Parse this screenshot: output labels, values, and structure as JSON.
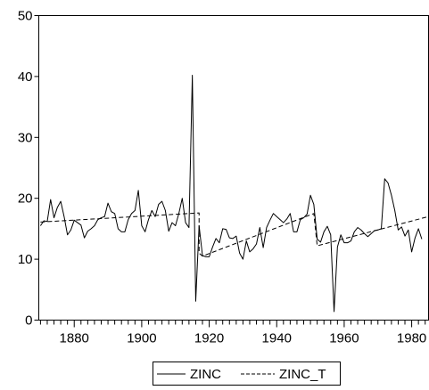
{
  "chart_data": {
    "type": "line",
    "title": "",
    "xlabel": "",
    "ylabel": "",
    "xlim": [
      1869.5,
      1985
    ],
    "ylim": [
      0,
      50
    ],
    "y_ticks": [
      0,
      10,
      20,
      30,
      40,
      50
    ],
    "x_ticks": [
      1880,
      1900,
      1920,
      1940,
      1960,
      1980
    ],
    "grid": false,
    "legend_position": "bottom-center",
    "series": [
      {
        "name": "ZINC",
        "style": "solid",
        "color": "#000000",
        "points": [
          [
            1870,
            15.5
          ],
          [
            1871,
            16.3
          ],
          [
            1872,
            16.2
          ],
          [
            1873,
            19.8
          ],
          [
            1874,
            16.8
          ],
          [
            1875,
            18.5
          ],
          [
            1876,
            19.5
          ],
          [
            1877,
            17.0
          ],
          [
            1878,
            14.0
          ],
          [
            1879,
            14.8
          ],
          [
            1880,
            16.4
          ],
          [
            1881,
            16.0
          ],
          [
            1882,
            15.6
          ],
          [
            1883,
            13.5
          ],
          [
            1884,
            14.6
          ],
          [
            1885,
            15.0
          ],
          [
            1886,
            15.5
          ],
          [
            1887,
            16.5
          ],
          [
            1888,
            16.8
          ],
          [
            1889,
            17.0
          ],
          [
            1890,
            19.2
          ],
          [
            1891,
            17.8
          ],
          [
            1892,
            17.5
          ],
          [
            1893,
            15.0
          ],
          [
            1894,
            14.5
          ],
          [
            1895,
            14.5
          ],
          [
            1896,
            16.5
          ],
          [
            1897,
            17.5
          ],
          [
            1898,
            18.0
          ],
          [
            1899,
            21.3
          ],
          [
            1900,
            15.5
          ],
          [
            1901,
            14.5
          ],
          [
            1902,
            16.5
          ],
          [
            1903,
            18.0
          ],
          [
            1904,
            17.0
          ],
          [
            1905,
            19.0
          ],
          [
            1906,
            19.5
          ],
          [
            1907,
            18.0
          ],
          [
            1908,
            14.6
          ],
          [
            1909,
            16.0
          ],
          [
            1910,
            15.5
          ],
          [
            1911,
            17.5
          ],
          [
            1912,
            20.0
          ],
          [
            1913,
            16.0
          ],
          [
            1914,
            15.2
          ],
          [
            1915,
            40.2
          ],
          [
            1916,
            3.1
          ],
          [
            1917,
            15.5
          ],
          [
            1918,
            10.6
          ],
          [
            1919,
            10.4
          ],
          [
            1920,
            10.4
          ],
          [
            1921,
            12.0
          ],
          [
            1922,
            13.4
          ],
          [
            1923,
            12.7
          ],
          [
            1924,
            15.0
          ],
          [
            1925,
            14.9
          ],
          [
            1926,
            13.5
          ],
          [
            1927,
            13.4
          ],
          [
            1928,
            13.8
          ],
          [
            1929,
            11.0
          ],
          [
            1930,
            10.0
          ],
          [
            1931,
            13.0
          ],
          [
            1932,
            11.2
          ],
          [
            1933,
            11.7
          ],
          [
            1934,
            12.5
          ],
          [
            1935,
            15.2
          ],
          [
            1936,
            11.9
          ],
          [
            1937,
            15.2
          ],
          [
            1938,
            16.4
          ],
          [
            1939,
            17.5
          ],
          [
            1940,
            17.0
          ],
          [
            1941,
            16.5
          ],
          [
            1942,
            16.0
          ],
          [
            1943,
            16.6
          ],
          [
            1944,
            17.5
          ],
          [
            1945,
            14.5
          ],
          [
            1946,
            14.5
          ],
          [
            1947,
            16.5
          ],
          [
            1948,
            16.8
          ],
          [
            1949,
            17.4
          ],
          [
            1950,
            20.5
          ],
          [
            1951,
            19.0
          ],
          [
            1952,
            13.3
          ],
          [
            1953,
            12.8
          ],
          [
            1954,
            14.5
          ],
          [
            1955,
            15.4
          ],
          [
            1956,
            14.0
          ],
          [
            1957,
            1.4
          ],
          [
            1958,
            12.0
          ],
          [
            1959,
            14.0
          ],
          [
            1960,
            12.7
          ],
          [
            1961,
            12.7
          ],
          [
            1962,
            13.0
          ],
          [
            1963,
            14.5
          ],
          [
            1964,
            15.2
          ],
          [
            1965,
            14.8
          ],
          [
            1966,
            14.2
          ],
          [
            1967,
            13.7
          ],
          [
            1968,
            14.2
          ],
          [
            1969,
            14.7
          ],
          [
            1970,
            14.8
          ],
          [
            1971,
            15.0
          ],
          [
            1972,
            23.2
          ],
          [
            1973,
            22.5
          ],
          [
            1974,
            20.5
          ],
          [
            1975,
            18.0
          ],
          [
            1976,
            14.8
          ],
          [
            1977,
            15.3
          ],
          [
            1978,
            13.8
          ],
          [
            1979,
            14.8
          ],
          [
            1980,
            11.2
          ],
          [
            1981,
            13.5
          ],
          [
            1982,
            15.0
          ],
          [
            1983,
            13.3
          ]
        ]
      },
      {
        "name": "ZINC_T",
        "style": "dashed",
        "color": "#000000",
        "points": [
          [
            1870,
            16.1
          ],
          [
            1917,
            17.6
          ],
          [
            1917,
            11.0
          ],
          [
            1918,
            10.5
          ],
          [
            1951,
            17.5
          ],
          [
            1952,
            12.2
          ],
          [
            1985,
            17.0
          ]
        ]
      }
    ]
  }
}
